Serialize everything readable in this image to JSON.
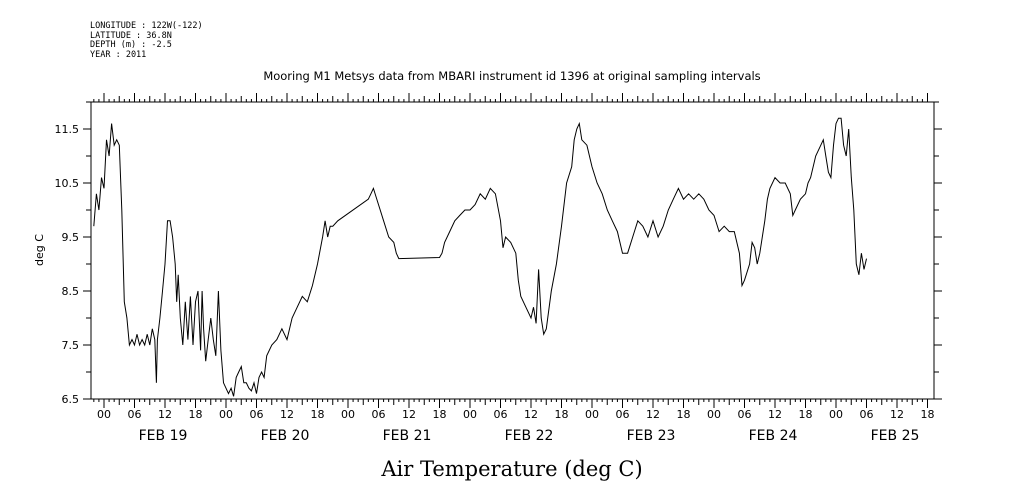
{
  "header": {
    "longitude": "LONGITUDE : 122W(-122)",
    "latitude": "LATITUDE : 36.8N",
    "depth": "DEPTH (m) : -2.5",
    "year": "YEAR : 2011"
  },
  "chart_data": {
    "type": "line",
    "title": "Mooring M1 Metsys data from MBARI instrument id 1396 at original sampling intervals",
    "ylabel": "deg C",
    "xlabel": "Air Temperature (deg C)",
    "xlim_hours_from_feb19_0000": [
      -2,
      162
    ],
    "ylim": [
      6.5,
      12.0
    ],
    "yticks": [
      6.5,
      7.5,
      8.5,
      9.5,
      10.5,
      11.5
    ],
    "ytick_labels": [
      "6.5",
      "7.5",
      "8.5",
      "9.5",
      "10.5",
      "11.5"
    ],
    "hour_ticks": [
      {
        "t": 0,
        "label": "00"
      },
      {
        "t": 6,
        "label": "06"
      },
      {
        "t": 12,
        "label": "12"
      },
      {
        "t": 18,
        "label": "18"
      },
      {
        "t": 24,
        "label": "00"
      },
      {
        "t": 30,
        "label": "06"
      },
      {
        "t": 36,
        "label": "12"
      },
      {
        "t": 42,
        "label": "18"
      },
      {
        "t": 48,
        "label": "00"
      },
      {
        "t": 54,
        "label": "06"
      },
      {
        "t": 60,
        "label": "12"
      },
      {
        "t": 66,
        "label": "18"
      },
      {
        "t": 72,
        "label": "00"
      },
      {
        "t": 78,
        "label": "06"
      },
      {
        "t": 84,
        "label": "12"
      },
      {
        "t": 90,
        "label": "18"
      },
      {
        "t": 96,
        "label": "00"
      },
      {
        "t": 102,
        "label": "06"
      },
      {
        "t": 108,
        "label": "12"
      },
      {
        "t": 114,
        "label": "18"
      },
      {
        "t": 120,
        "label": "00"
      },
      {
        "t": 126,
        "label": "06"
      },
      {
        "t": 132,
        "label": "12"
      },
      {
        "t": 138,
        "label": "18"
      },
      {
        "t": 144,
        "label": "00"
      },
      {
        "t": 150,
        "label": "06"
      },
      {
        "t": 156,
        "label": "12"
      },
      {
        "t": 162,
        "label": "18"
      }
    ],
    "date_labels": [
      {
        "t": 12,
        "label": "FEB 19"
      },
      {
        "t": 36,
        "label": "FEB 20"
      },
      {
        "t": 60,
        "label": "FEB 21"
      },
      {
        "t": 84,
        "label": "FEB 22"
      },
      {
        "t": 108,
        "label": "FEB 23"
      },
      {
        "t": 132,
        "label": "FEB 24"
      },
      {
        "t": 156,
        "label": "FEB 25"
      }
    ],
    "series": [
      {
        "points": [
          [
            -2,
            9.7
          ],
          [
            -1.5,
            10.3
          ],
          [
            -1,
            10.0
          ],
          [
            -0.5,
            10.6
          ],
          [
            0,
            10.4
          ],
          [
            0.5,
            11.3
          ],
          [
            1,
            11.0
          ],
          [
            1.5,
            11.6
          ],
          [
            2,
            11.2
          ],
          [
            2.5,
            11.3
          ],
          [
            3,
            11.2
          ],
          [
            3.5,
            10.0
          ],
          [
            4,
            8.3
          ],
          [
            4.5,
            8.0
          ],
          [
            5,
            7.5
          ],
          [
            5.5,
            7.6
          ],
          [
            6,
            7.5
          ],
          [
            6.5,
            7.7
          ],
          [
            7,
            7.5
          ],
          [
            7.5,
            7.6
          ],
          [
            8,
            7.5
          ],
          [
            8.5,
            7.7
          ],
          [
            9,
            7.5
          ],
          [
            9.5,
            7.8
          ],
          [
            10,
            7.6
          ],
          [
            10.3,
            6.8
          ],
          [
            10.5,
            7.6
          ],
          [
            11,
            8.0
          ],
          [
            11.5,
            8.5
          ],
          [
            12,
            9.0
          ],
          [
            12.5,
            9.8
          ],
          [
            13,
            9.8
          ],
          [
            13.5,
            9.5
          ],
          [
            14,
            9.0
          ],
          [
            14.3,
            8.3
          ],
          [
            14.6,
            8.8
          ],
          [
            15,
            8.0
          ],
          [
            15.5,
            7.5
          ],
          [
            16,
            8.3
          ],
          [
            16.5,
            7.6
          ],
          [
            17,
            8.4
          ],
          [
            17.5,
            7.5
          ],
          [
            18,
            8.3
          ],
          [
            18.5,
            8.5
          ],
          [
            19,
            7.4
          ],
          [
            19.3,
            8.5
          ],
          [
            19.6,
            7.8
          ],
          [
            20,
            7.2
          ],
          [
            20.5,
            7.6
          ],
          [
            21,
            8.0
          ],
          [
            21.5,
            7.6
          ],
          [
            22,
            7.3
          ],
          [
            22.5,
            8.5
          ],
          [
            23,
            7.4
          ],
          [
            23.5,
            6.8
          ],
          [
            24,
            6.7
          ],
          [
            24.5,
            6.6
          ],
          [
            25,
            6.7
          ],
          [
            25.5,
            6.55
          ],
          [
            26,
            6.9
          ],
          [
            26.5,
            7.0
          ],
          [
            27,
            7.1
          ],
          [
            27.5,
            6.8
          ],
          [
            28,
            6.8
          ],
          [
            28.5,
            6.7
          ],
          [
            29,
            6.65
          ],
          [
            29.5,
            6.8
          ],
          [
            30,
            6.6
          ],
          [
            30.5,
            6.9
          ],
          [
            31,
            7.0
          ],
          [
            31.5,
            6.9
          ],
          [
            32,
            7.3
          ],
          [
            33,
            7.5
          ],
          [
            34,
            7.6
          ],
          [
            35,
            7.8
          ],
          [
            36,
            7.6
          ],
          [
            37,
            8.0
          ],
          [
            38,
            8.2
          ],
          [
            39,
            8.4
          ],
          [
            40,
            8.3
          ],
          [
            41,
            8.6
          ],
          [
            42,
            9.0
          ],
          [
            43,
            9.5
          ],
          [
            43.5,
            9.8
          ],
          [
            44,
            9.5
          ],
          [
            44.5,
            9.7
          ],
          [
            45,
            9.7
          ],
          [
            46,
            9.8
          ],
          [
            52,
            10.2
          ],
          [
            52.5,
            10.3
          ],
          [
            53,
            10.4
          ],
          [
            54,
            10.1
          ],
          [
            55,
            9.8
          ],
          [
            56,
            9.5
          ],
          [
            57,
            9.4
          ],
          [
            57.5,
            9.2
          ],
          [
            58,
            9.1
          ],
          [
            66,
            9.12
          ],
          [
            66.5,
            9.2
          ],
          [
            67,
            9.4
          ],
          [
            68,
            9.6
          ],
          [
            69,
            9.8
          ],
          [
            70,
            9.9
          ],
          [
            71,
            10.0
          ],
          [
            72,
            10.0
          ],
          [
            73,
            10.1
          ],
          [
            74,
            10.3
          ],
          [
            75,
            10.2
          ],
          [
            76,
            10.4
          ],
          [
            77,
            10.3
          ],
          [
            78,
            9.8
          ],
          [
            78.5,
            9.3
          ],
          [
            79,
            9.5
          ],
          [
            80,
            9.4
          ],
          [
            81,
            9.2
          ],
          [
            81.5,
            8.7
          ],
          [
            82,
            8.4
          ],
          [
            83,
            8.2
          ],
          [
            84,
            8.0
          ],
          [
            84.5,
            8.2
          ],
          [
            85,
            7.9
          ],
          [
            85.5,
            8.9
          ],
          [
            86,
            8.0
          ],
          [
            86.5,
            7.7
          ],
          [
            87,
            7.8
          ],
          [
            88,
            8.5
          ],
          [
            89,
            9.0
          ],
          [
            90,
            9.7
          ],
          [
            91,
            10.5
          ],
          [
            92,
            10.8
          ],
          [
            92.5,
            11.3
          ],
          [
            93,
            11.5
          ],
          [
            93.5,
            11.6
          ],
          [
            94,
            11.3
          ],
          [
            95,
            11.2
          ],
          [
            96,
            10.8
          ],
          [
            97,
            10.5
          ],
          [
            98,
            10.3
          ],
          [
            99,
            10.0
          ],
          [
            100,
            9.8
          ],
          [
            101,
            9.6
          ],
          [
            102,
            9.2
          ],
          [
            103,
            9.2
          ],
          [
            104,
            9.5
          ],
          [
            105,
            9.8
          ],
          [
            106,
            9.7
          ],
          [
            107,
            9.5
          ],
          [
            108,
            9.8
          ],
          [
            109,
            9.5
          ],
          [
            110,
            9.7
          ],
          [
            111,
            10.0
          ],
          [
            112,
            10.2
          ],
          [
            113,
            10.4
          ],
          [
            114,
            10.2
          ],
          [
            115,
            10.3
          ],
          [
            116,
            10.2
          ],
          [
            117,
            10.3
          ],
          [
            118,
            10.2
          ],
          [
            119,
            10.0
          ],
          [
            120,
            9.9
          ],
          [
            121,
            9.6
          ],
          [
            122,
            9.7
          ],
          [
            123,
            9.6
          ],
          [
            124,
            9.6
          ],
          [
            125,
            9.2
          ],
          [
            125.5,
            8.6
          ],
          [
            126,
            8.7
          ],
          [
            127,
            9.0
          ],
          [
            127.5,
            9.4
          ],
          [
            128,
            9.3
          ],
          [
            128.5,
            9.0
          ],
          [
            129,
            9.2
          ],
          [
            130,
            9.8
          ],
          [
            130.5,
            10.2
          ],
          [
            131,
            10.4
          ],
          [
            132,
            10.6
          ],
          [
            133,
            10.5
          ],
          [
            134,
            10.5
          ],
          [
            135,
            10.3
          ],
          [
            135.5,
            9.9
          ],
          [
            136,
            10.0
          ],
          [
            137,
            10.2
          ],
          [
            138,
            10.3
          ],
          [
            138.5,
            10.5
          ],
          [
            139,
            10.6
          ],
          [
            140,
            11.0
          ],
          [
            141,
            11.2
          ],
          [
            141.5,
            11.3
          ],
          [
            142,
            11.0
          ],
          [
            142.5,
            10.7
          ],
          [
            143,
            10.6
          ],
          [
            143.5,
            11.2
          ],
          [
            144,
            11.6
          ],
          [
            144.5,
            11.7
          ],
          [
            145,
            11.7
          ],
          [
            145.5,
            11.2
          ],
          [
            146,
            11.0
          ],
          [
            146.5,
            11.5
          ],
          [
            147,
            10.6
          ],
          [
            147.5,
            10.0
          ],
          [
            148,
            9.0
          ],
          [
            148.5,
            8.8
          ],
          [
            149,
            9.2
          ],
          [
            149.5,
            8.9
          ],
          [
            150,
            9.1
          ]
        ]
      }
    ]
  }
}
